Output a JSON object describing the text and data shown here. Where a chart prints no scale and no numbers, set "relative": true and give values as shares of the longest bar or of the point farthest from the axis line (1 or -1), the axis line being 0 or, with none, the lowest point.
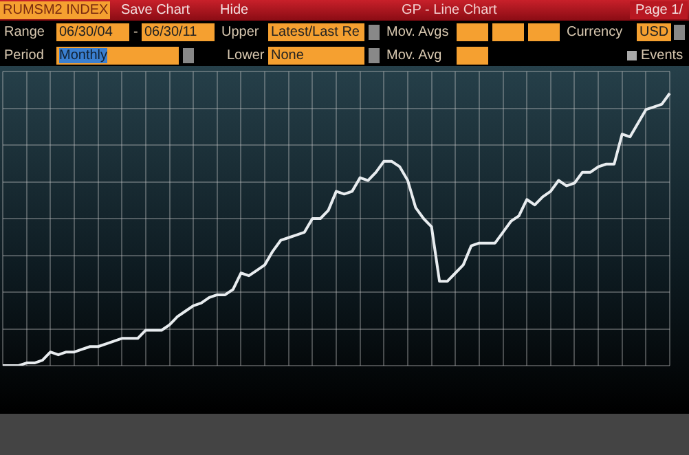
{
  "chart_data": {
    "type": "line",
    "title": "RUMSM2 INDEX",
    "subtitle": "GP - Line Chart",
    "annotations": [
      "Save Chart",
      "Hide",
      "Page 1/",
      "Range",
      "06/30/04",
      "-",
      "06/30/11",
      "Upper",
      "Latest/Last Re",
      "Mov. Avgs",
      "Currency",
      "USD",
      "Period",
      "Monthly",
      "Lower",
      "None",
      "Mov. Avg",
      "Events"
    ],
    "relative": true,
    "tick_labels": false,
    "grid": true,
    "legend": false,
    "marker": "none",
    "line_style": "solid",
    "categories": [
      null,
      null,
      null,
      null,
      null,
      null,
      null,
      null,
      null,
      null,
      null,
      null,
      null,
      null,
      null,
      null,
      null,
      null,
      null,
      null,
      null,
      null,
      null,
      null,
      null,
      null,
      null,
      null,
      null,
      null,
      null,
      null,
      null,
      null,
      null,
      null,
      null,
      null,
      null,
      null,
      null,
      null,
      null,
      null,
      null,
      null,
      null,
      null,
      null,
      null,
      null,
      null,
      null,
      null,
      null,
      null,
      null,
      null,
      null,
      null,
      null,
      null,
      null,
      null,
      null,
      null,
      null,
      null,
      null,
      null,
      null,
      null,
      null,
      null,
      null,
      null,
      null,
      null,
      null,
      null,
      null,
      null,
      null,
      null,
      null
    ],
    "series": [
      {
        "color": "#e8ecef",
        "values": [
          0,
          0,
          0,
          0.01,
          0.01,
          0.02,
          0.05,
          0.04,
          0.05,
          0.05,
          0.06,
          0.07,
          0.07,
          0.08,
          0.09,
          0.1,
          0.1,
          0.1,
          0.13,
          0.13,
          0.13,
          0.15,
          0.18,
          0.2,
          0.22,
          0.23,
          0.25,
          0.26,
          0.26,
          0.28,
          0.34,
          0.33,
          0.35,
          0.37,
          0.42,
          0.46,
          0.47,
          0.48,
          0.49,
          0.54,
          0.54,
          0.57,
          0.64,
          0.63,
          0.64,
          0.69,
          0.68,
          0.71,
          0.75,
          0.75,
          0.73,
          0.68,
          0.58,
          0.54,
          0.51,
          0.31,
          0.31,
          0.34,
          0.37,
          0.44,
          0.45,
          0.45,
          0.45,
          0.49,
          0.53,
          0.55,
          0.61,
          0.59,
          0.62,
          0.64,
          0.68,
          0.66,
          0.67,
          0.71,
          0.71,
          0.73,
          0.74,
          0.74,
          0.85,
          0.84,
          0.89,
          0.94,
          0.95,
          0.96,
          1
        ]
      }
    ]
  }
}
